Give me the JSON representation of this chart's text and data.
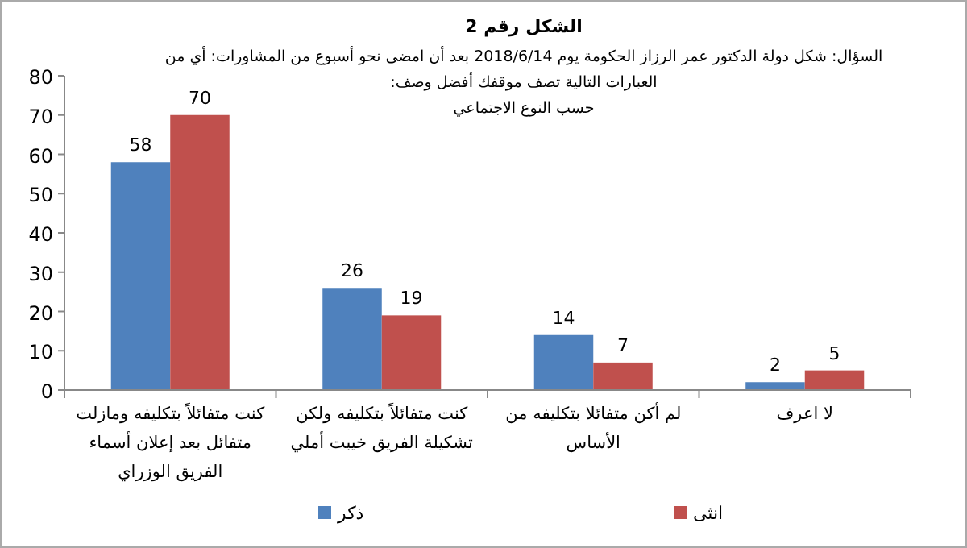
{
  "chart_data": {
    "type": "bar",
    "title": "الشكل رقم 2",
    "subtitle": "السؤال: شكل دولة الدكتور عمر الرزاز الحكومة يوم 2018/6/14 بعد أن امضى نحو أسبوع من المشاورات: أي من\nالعبارات التالية تصف موقفك أفضل وصف:\nحسب النوع الاجتماعي",
    "categories": [
      "كنت متفائلاً بتكليفه ومازلت متفائل بعد إعلان أسماء الفريق الوزراي",
      "كنت متفائلاً بتكليفه ولكن تشكيلة الفريق خيبت أملي",
      "لم أكن متفائلا بتكليفه من الأساس",
      "لا اعرف"
    ],
    "series": [
      {
        "name": "ذكر",
        "color": "#4f81bd",
        "values": [
          58,
          26,
          14,
          2
        ]
      },
      {
        "name": "انثى",
        "color": "#c0504d",
        "values": [
          70,
          19,
          7,
          5
        ]
      }
    ],
    "ylim": [
      0,
      80
    ],
    "yticks": [
      0,
      10,
      20,
      30,
      40,
      50,
      60,
      70,
      80
    ],
    "data_labels": true,
    "legend": "bottom",
    "grid": false
  }
}
